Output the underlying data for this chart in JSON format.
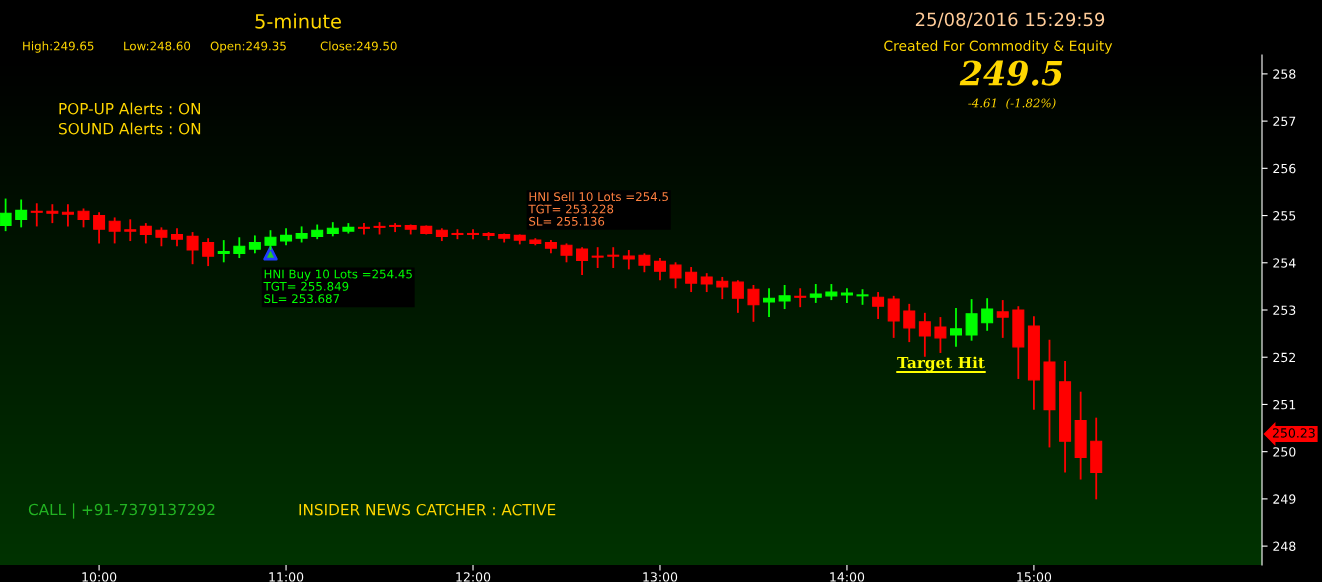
{
  "chart_data": {
    "type": "candlestick",
    "title": "5-minute",
    "subtitle": "25/08/2016 15:29:59",
    "x": [
      9.5,
      9.5833,
      9.6667,
      9.75,
      9.8333,
      9.9167,
      10,
      10.0833,
      10.1667,
      10.25,
      10.3333,
      10.4167,
      10.5,
      10.5833,
      10.6667,
      10.75,
      10.8333,
      10.9167,
      11,
      11.0833,
      11.1667,
      11.25,
      11.3333,
      11.4167,
      11.5,
      11.5833,
      11.6667,
      11.75,
      11.8333,
      11.9167,
      12,
      12.0833,
      12.1667,
      12.25,
      12.3333,
      12.4167,
      12.5,
      12.5833,
      12.6667,
      12.75,
      12.8333,
      12.9167,
      13,
      13.0833,
      13.1667,
      13.25,
      13.3333,
      13.4167,
      13.5,
      13.5833,
      13.6667,
      13.75,
      13.8333,
      13.9167,
      14,
      14.0833,
      14.1667,
      14.25,
      14.3333,
      14.4167,
      14.5,
      14.5833,
      14.6667,
      14.75,
      14.8333,
      14.9167,
      15,
      15.0833,
      15.1667,
      15.25,
      15.3333
    ],
    "ohlc": [
      [
        254.79,
        255.36,
        254.67,
        255.05
      ],
      [
        254.92,
        255.34,
        254.75,
        255.11
      ],
      [
        255.07,
        255.26,
        254.77,
        255.07
      ],
      [
        255.09,
        255.24,
        254.84,
        255.05
      ],
      [
        255.07,
        255.24,
        254.77,
        255.03
      ],
      [
        255.09,
        255.15,
        254.75,
        254.92
      ],
      [
        255.0,
        255.07,
        254.41,
        254.71
      ],
      [
        254.88,
        254.96,
        254.41,
        254.67
      ],
      [
        254.7,
        254.92,
        254.46,
        254.67
      ],
      [
        254.77,
        254.84,
        254.41,
        254.6
      ],
      [
        254.69,
        254.75,
        254.35,
        254.54
      ],
      [
        254.6,
        254.73,
        254.35,
        254.5
      ],
      [
        254.56,
        254.65,
        253.97,
        254.27
      ],
      [
        254.43,
        254.52,
        253.93,
        254.14
      ],
      [
        254.2,
        254.48,
        254.01,
        254.24
      ],
      [
        254.2,
        254.54,
        254.1,
        254.35
      ],
      [
        254.29,
        254.58,
        254.2,
        254.43
      ],
      [
        254.37,
        254.69,
        254.27,
        254.54
      ],
      [
        254.46,
        254.73,
        254.37,
        254.58
      ],
      [
        254.52,
        254.77,
        254.43,
        254.62
      ],
      [
        254.56,
        254.81,
        254.5,
        254.69
      ],
      [
        254.62,
        254.86,
        254.56,
        254.73
      ],
      [
        254.67,
        254.84,
        254.62,
        254.75
      ],
      [
        254.75,
        254.84,
        254.6,
        254.73
      ],
      [
        254.77,
        254.86,
        254.6,
        254.75
      ],
      [
        254.79,
        254.84,
        254.65,
        254.77
      ],
      [
        254.79,
        254.81,
        254.6,
        254.71
      ],
      [
        254.77,
        254.79,
        254.6,
        254.62
      ],
      [
        254.69,
        254.73,
        254.46,
        254.56
      ],
      [
        254.62,
        254.71,
        254.5,
        254.6
      ],
      [
        254.62,
        254.71,
        254.5,
        254.6
      ],
      [
        254.62,
        254.65,
        254.48,
        254.58
      ],
      [
        254.6,
        254.62,
        254.43,
        254.52
      ],
      [
        254.58,
        254.6,
        254.39,
        254.48
      ],
      [
        254.48,
        254.52,
        254.37,
        254.41
      ],
      [
        254.43,
        254.48,
        254.2,
        254.31
      ],
      [
        254.37,
        254.41,
        254.01,
        254.16
      ],
      [
        254.29,
        254.33,
        253.74,
        254.05
      ],
      [
        254.14,
        254.33,
        253.89,
        254.12
      ],
      [
        254.16,
        254.33,
        253.89,
        254.14
      ],
      [
        254.14,
        254.27,
        253.86,
        254.08
      ],
      [
        254.16,
        254.2,
        253.8,
        253.95
      ],
      [
        254.03,
        254.1,
        253.63,
        253.82
      ],
      [
        253.95,
        254.01,
        253.46,
        253.68
      ],
      [
        253.8,
        253.91,
        253.38,
        253.57
      ],
      [
        253.7,
        253.78,
        253.38,
        253.55
      ],
      [
        253.61,
        253.7,
        253.23,
        253.49
      ],
      [
        253.59,
        253.63,
        252.94,
        253.25
      ],
      [
        253.44,
        253.53,
        252.75,
        253.11
      ],
      [
        253.17,
        253.46,
        252.85,
        253.25
      ],
      [
        253.19,
        253.53,
        253.02,
        253.3
      ],
      [
        253.28,
        253.46,
        253.06,
        253.27
      ],
      [
        253.27,
        253.55,
        253.15,
        253.34
      ],
      [
        253.3,
        253.55,
        253.21,
        253.38
      ],
      [
        253.32,
        253.46,
        253.15,
        253.36
      ],
      [
        253.3,
        253.44,
        253.11,
        253.32
      ],
      [
        253.27,
        253.38,
        252.81,
        253.08
      ],
      [
        253.23,
        253.3,
        252.41,
        252.77
      ],
      [
        252.98,
        253.13,
        252.32,
        252.62
      ],
      [
        252.75,
        252.94,
        252.01,
        252.45
      ],
      [
        252.64,
        252.85,
        252.09,
        252.41
      ],
      [
        252.47,
        253.04,
        252.22,
        252.6
      ],
      [
        252.47,
        253.23,
        252.35,
        252.92
      ],
      [
        252.73,
        253.25,
        252.56,
        253.02
      ],
      [
        252.96,
        253.21,
        252.41,
        252.85
      ],
      [
        253.0,
        253.08,
        251.54,
        252.22
      ],
      [
        252.66,
        252.87,
        250.89,
        251.52
      ],
      [
        251.9,
        252.37,
        250.09,
        250.89
      ],
      [
        251.48,
        251.92,
        249.56,
        250.22
      ],
      [
        250.66,
        251.27,
        249.41,
        249.88
      ],
      [
        250.22,
        250.72,
        248.99,
        249.56
      ]
    ],
    "colors": [
      "#00ff00",
      "#00ff00",
      "#ff0000",
      "#ff0000",
      "#ff0000",
      "#ff0000",
      "#ff0000",
      "#ff0000",
      "#ff0000",
      "#ff0000",
      "#ff0000",
      "#ff0000",
      "#ff0000",
      "#ff0000",
      "#00ff00",
      "#00ff00",
      "#00ff00",
      "#00ff00",
      "#00ff00",
      "#00ff00",
      "#00ff00",
      "#00ff00",
      "#00ff00",
      "#ff0000",
      "#ff0000",
      "#ff0000",
      "#ff0000",
      "#ff0000",
      "#ff0000",
      "#ff0000",
      "#ff0000",
      "#ff0000",
      "#ff0000",
      "#ff0000",
      "#ff0000",
      "#ff0000",
      "#ff0000",
      "#ff0000",
      "#ff0000",
      "#ff0000",
      "#ff0000",
      "#ff0000",
      "#ff0000",
      "#ff0000",
      "#ff0000",
      "#ff0000",
      "#ff0000",
      "#ff0000",
      "#ff0000",
      "#00ff00",
      "#00ff00",
      "#ff0000",
      "#00ff00",
      "#00ff00",
      "#00ff00",
      "#00ff00",
      "#ff0000",
      "#ff0000",
      "#ff0000",
      "#ff0000",
      "#ff0000",
      "#00ff00",
      "#00ff00",
      "#00ff00",
      "#ff0000",
      "#ff0000",
      "#ff0000",
      "#ff0000",
      "#ff0000",
      "#ff0000",
      "#ff0000"
    ],
    "series": [
      {
        "type": "scatter",
        "x": [
          10.9167
        ],
        "values": [
          254.2
        ],
        "color": "#1f3cff"
      }
    ],
    "marker": "triangle",
    "xlim": [
      9.47,
      16.22
    ],
    "xticks": [
      {
        "value": 10,
        "label": "10:00"
      },
      {
        "value": 11,
        "label": "11:00"
      },
      {
        "value": 12,
        "label": "12:00"
      },
      {
        "value": 13,
        "label": "13:00"
      },
      {
        "value": 14,
        "label": "14:00"
      },
      {
        "value": 15,
        "label": "15:00"
      }
    ],
    "ylim": [
      247.6,
      258.4
    ],
    "yticks": [
      248,
      249,
      250,
      251,
      252,
      253,
      254,
      255,
      256,
      257,
      258
    ],
    "grid": false,
    "annotations": [
      "High:249.65",
      "Low:248.60",
      "Open:249.35",
      "Close:249.50",
      "Created For Commodity & Equity",
      "249.5",
      "-4.61  (-1.82%)",
      "POP-UP Alerts : ON",
      "SOUND Alerts : ON",
      {
        "text": "HNI Buy 10 Lots =254.45\nTGT= 255.849\nSL= 253.687",
        "x": 10.9167,
        "y": 254.45
      },
      {
        "text": "HNI Sell 10 Lots =254.5\nTGT= 253.228\nSL= 255.136",
        "x": 12.3333,
        "y": 254.5
      },
      "Target Hit",
      "CALL | +91-7379137292",
      "INSIDER NEWS CATCHER : ACTIVE",
      "250.23"
    ]
  }
}
